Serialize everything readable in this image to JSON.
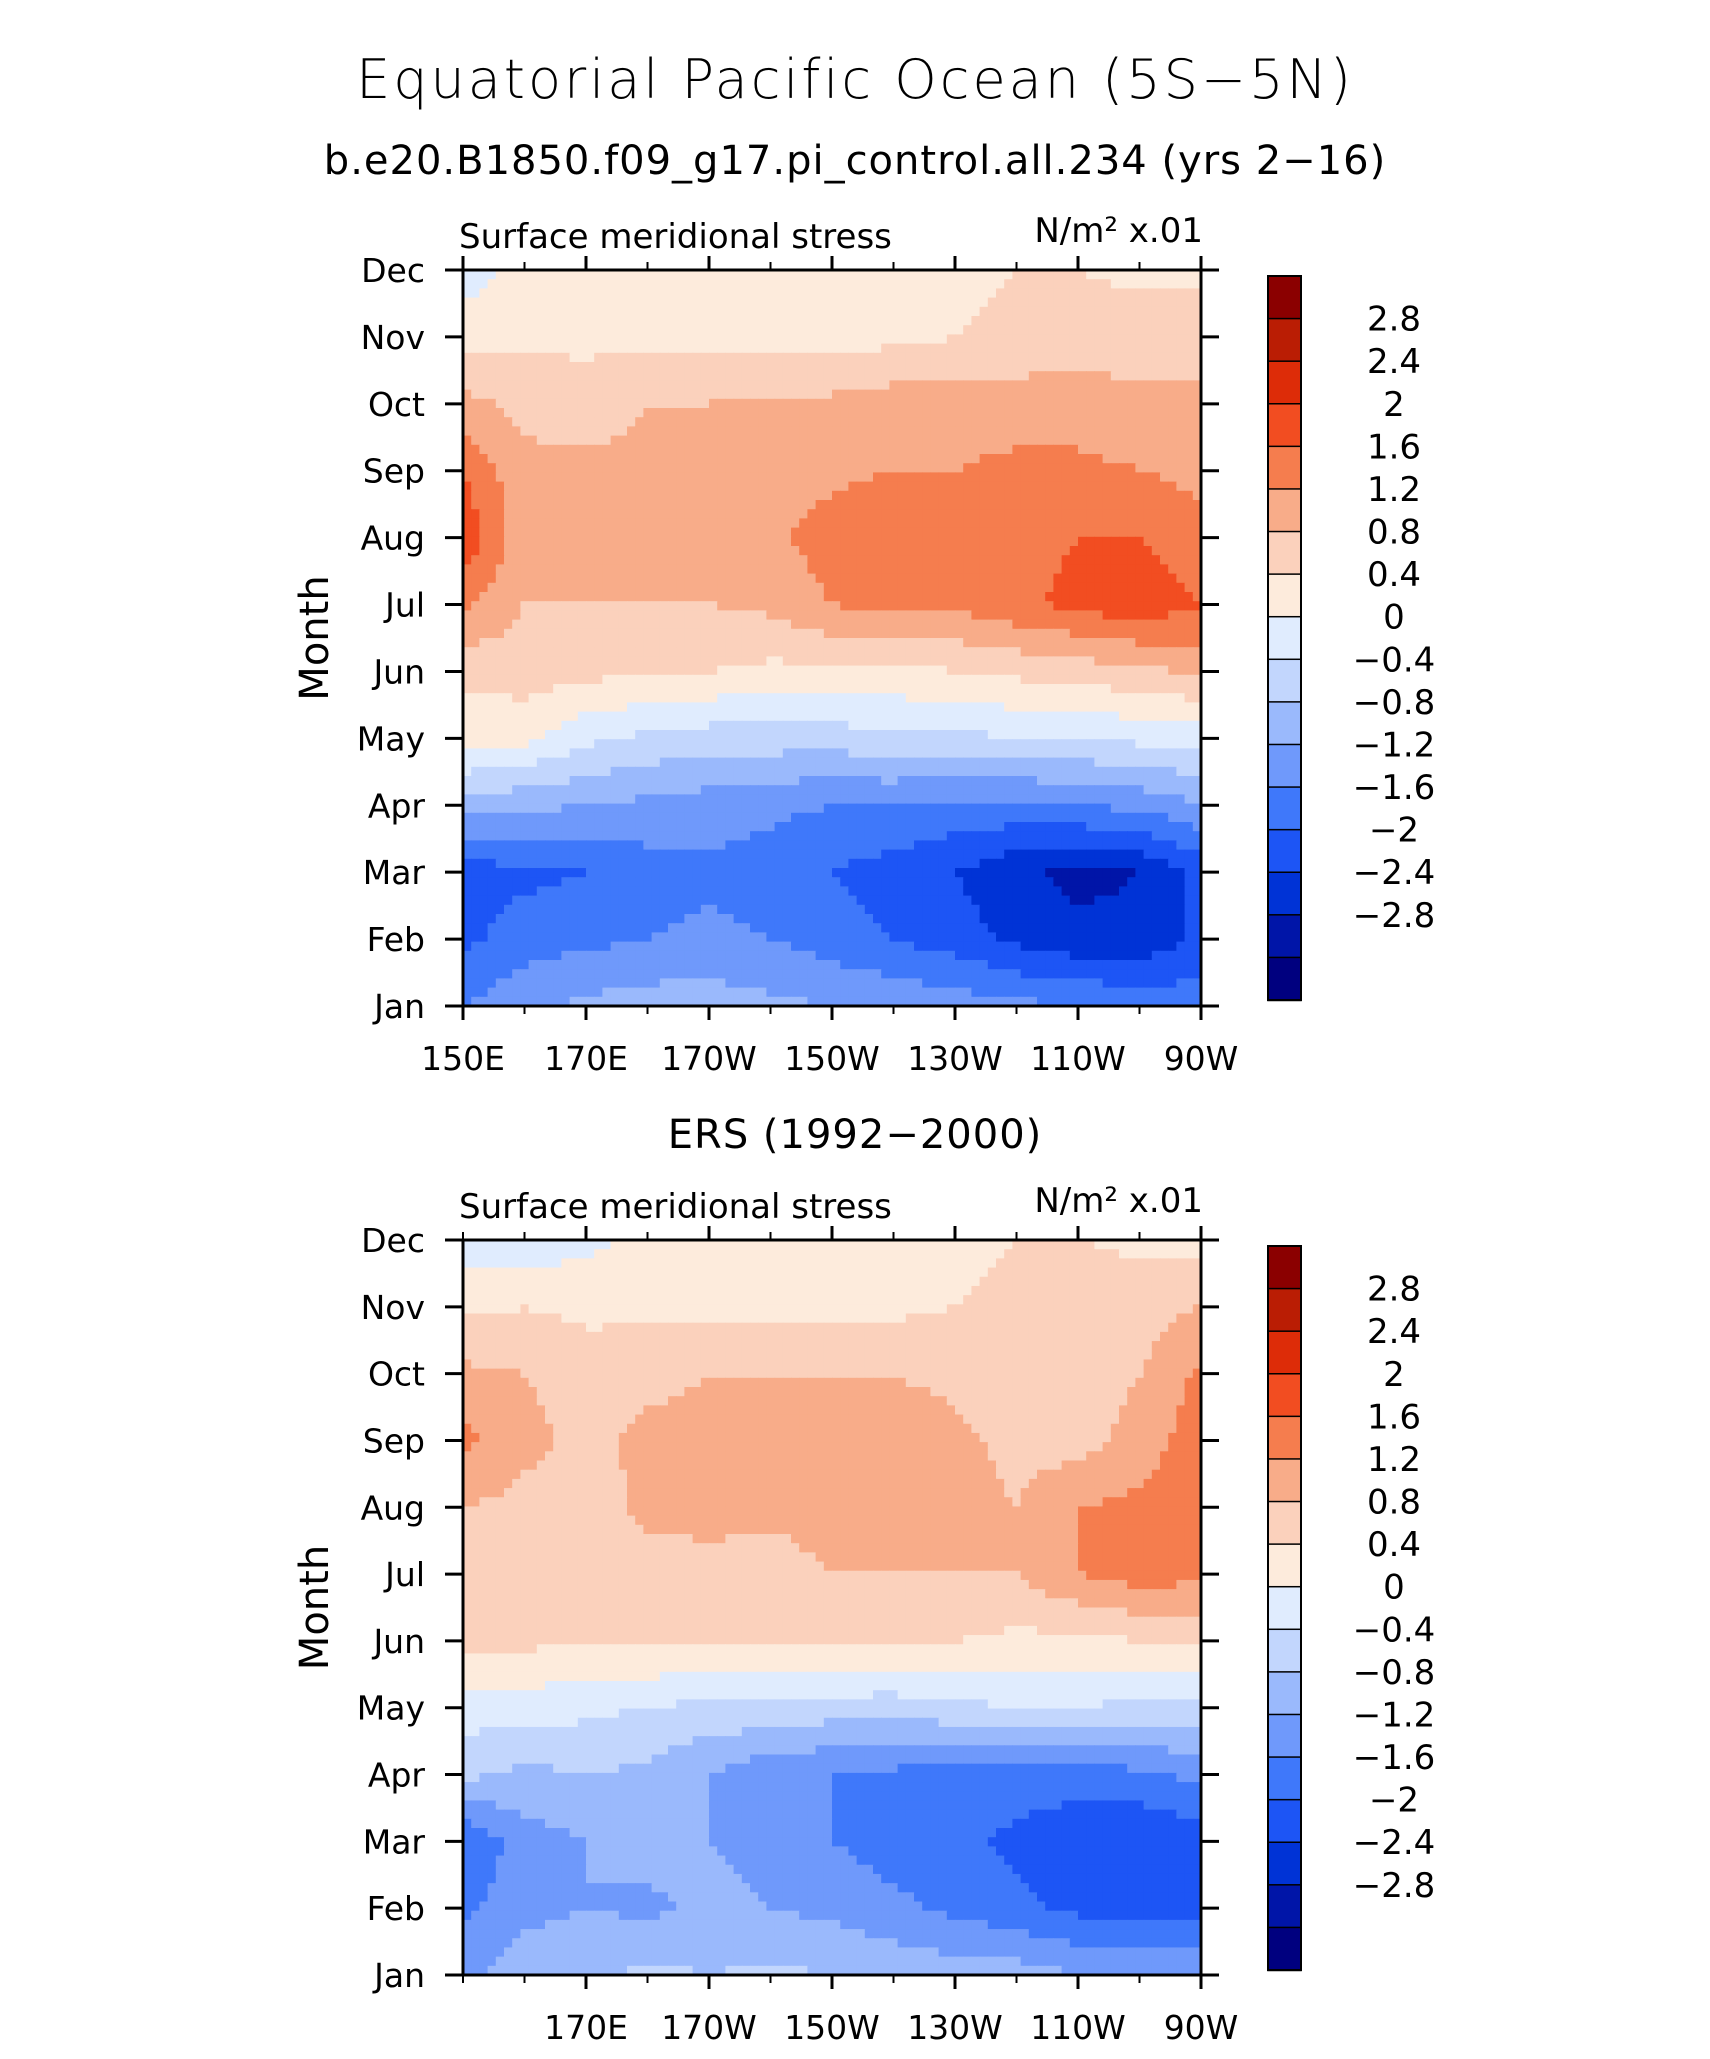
{
  "figure": {
    "title": "Equatorial Pacific Ocean (5S−5N)",
    "subtitle_top": "b.e20.B1850.f09_g17.pi_control.all.234 (yrs 2−16)",
    "subtitle_bottom": "ERS (1992−2000)"
  },
  "colors": {
    "palette": [
      "#00007f",
      "#0015a8",
      "#0033d6",
      "#1d55f5",
      "#3f78fa",
      "#6f99fb",
      "#9ab9fc",
      "#c2d6fd",
      "#e0ecfe",
      "#fdebdc",
      "#fbd1bc",
      "#f8ac89",
      "#f57d4e",
      "#f24d21",
      "#dd2c08",
      "#ba1d04",
      "#8b0000"
    ]
  },
  "chart_data": [
    {
      "type": "heatmap",
      "title": "b.e20.B1850.f09_g17.pi_control.all.234 (yrs 2−16)",
      "left_label": "Surface meridional stress",
      "right_label": "N/m² x.01",
      "ylabel": "Month",
      "xlabel": "",
      "y_ticks": [
        "Jan",
        "Feb",
        "Mar",
        "Apr",
        "May",
        "Jun",
        "Jul",
        "Aug",
        "Sep",
        "Oct",
        "Nov",
        "Dec"
      ],
      "x_ticks": [
        "150E",
        "170E",
        "170W",
        "150W",
        "130W",
        "110W",
        "90W"
      ],
      "x_tick_positions_lon": [
        150,
        170,
        190,
        210,
        230,
        250,
        270
      ],
      "xlim": [
        150,
        270
      ],
      "levels": [
        -2.8,
        -2.4,
        -2,
        -1.6,
        -1.2,
        -0.8,
        -0.4,
        0,
        0.4,
        0.8,
        1.2,
        1.6,
        2,
        2.4,
        2.8
      ],
      "colorbar_labels": [
        "2.8",
        "2.4",
        "2",
        "1.6",
        "1.2",
        "0.8",
        "0.4",
        "0",
        "−0.4",
        "−0.8",
        "−1.2",
        "−1.6",
        "−2",
        "−2.4",
        "−2.8"
      ],
      "lon": [
        150,
        160,
        170,
        180,
        190,
        200,
        210,
        220,
        230,
        240,
        250,
        260,
        270
      ],
      "months": [
        "Jan",
        "Feb",
        "Mar",
        "Apr",
        "May",
        "Jun",
        "Jul",
        "Aug",
        "Sep",
        "Oct",
        "Nov",
        "Dec"
      ],
      "values": [
        [
          -1.6,
          -1.3,
          -1.1,
          -1.0,
          -1.0,
          -1.1,
          -1.2,
          -1.3,
          -1.4,
          -1.5,
          -1.6,
          -1.7,
          -1.8
        ],
        [
          -2.1,
          -1.8,
          -1.7,
          -1.6,
          -1.5,
          -1.6,
          -1.8,
          -2.0,
          -2.2,
          -2.5,
          -2.7,
          -2.7,
          -2.3
        ],
        [
          -2.2,
          -2.1,
          -2.0,
          -1.8,
          -1.7,
          -1.8,
          -2.0,
          -2.2,
          -2.4,
          -2.7,
          -2.9,
          -2.8,
          -2.3
        ],
        [
          -1.0,
          -1.1,
          -1.2,
          -1.3,
          -1.4,
          -1.5,
          -1.6,
          -1.6,
          -1.7,
          -1.7,
          -1.6,
          -1.5,
          -1.2
        ],
        [
          0.2,
          0.1,
          -0.3,
          -0.5,
          -0.6,
          -0.6,
          -0.6,
          -0.5,
          -0.5,
          -0.4,
          -0.4,
          -0.3,
          -0.3
        ],
        [
          0.5,
          0.6,
          0.5,
          0.5,
          0.4,
          0.3,
          0.3,
          0.3,
          0.4,
          0.5,
          0.6,
          0.7,
          0.9
        ],
        [
          1.3,
          0.8,
          0.8,
          0.8,
          0.8,
          0.9,
          1.2,
          1.3,
          1.3,
          1.5,
          1.7,
          1.9,
          1.6
        ],
        [
          1.9,
          0.9,
          1.0,
          1.0,
          1.0,
          1.1,
          1.4,
          1.5,
          1.4,
          1.5,
          1.6,
          1.6,
          1.3
        ],
        [
          1.6,
          0.9,
          0.9,
          0.9,
          1.0,
          1.0,
          1.1,
          1.2,
          1.2,
          1.3,
          1.3,
          1.2,
          1.1
        ],
        [
          0.9,
          0.7,
          0.6,
          0.8,
          0.8,
          0.9,
          0.9,
          1.0,
          1.0,
          1.0,
          1.0,
          0.9,
          0.9
        ],
        [
          0.3,
          0.3,
          0.3,
          0.3,
          0.3,
          0.2,
          0.2,
          0.3,
          0.4,
          0.5,
          0.6,
          0.6,
          0.6
        ],
        [
          -0.3,
          0.2,
          0.1,
          0.1,
          0.1,
          0.2,
          0.2,
          0.2,
          0.3,
          0.4,
          0.4,
          0.3,
          0.3
        ]
      ]
    },
    {
      "type": "heatmap",
      "title": "ERS (1992−2000)",
      "left_label": "Surface meridional stress",
      "right_label": "N/m² x.01",
      "ylabel": "Month",
      "xlabel": "",
      "y_ticks": [
        "Jan",
        "Feb",
        "Mar",
        "Apr",
        "May",
        "Jun",
        "Jul",
        "Aug",
        "Sep",
        "Oct",
        "Nov",
        "Dec"
      ],
      "x_ticks": [
        "170E",
        "170W",
        "150W",
        "130W",
        "110W",
        "90W"
      ],
      "x_tick_positions_lon": [
        170,
        190,
        210,
        230,
        250,
        270
      ],
      "xlim": [
        150,
        270
      ],
      "levels": [
        -2.8,
        -2.4,
        -2,
        -1.6,
        -1.2,
        -0.8,
        -0.4,
        0,
        0.4,
        0.8,
        1.2,
        1.6,
        2,
        2.4,
        2.8
      ],
      "colorbar_labels": [
        "2.8",
        "2.4",
        "2",
        "1.6",
        "1.2",
        "0.8",
        "0.4",
        "0",
        "−0.4",
        "−0.8",
        "−1.2",
        "−1.6",
        "−2",
        "−2.4",
        "−2.8"
      ],
      "lon": [
        150,
        160,
        170,
        180,
        190,
        200,
        210,
        220,
        230,
        240,
        250,
        260,
        270
      ],
      "months": [
        "Jan",
        "Feb",
        "Mar",
        "Apr",
        "May",
        "Jun",
        "Jul",
        "Aug",
        "Sep",
        "Oct",
        "Nov",
        "Dec"
      ],
      "values": [
        [
          -1.3,
          -1.0,
          -0.9,
          -0.7,
          -0.8,
          -0.7,
          -0.8,
          -0.9,
          -1.0,
          -1.0,
          -1.2,
          -1.2,
          -1.3
        ],
        [
          -1.7,
          -1.3,
          -1.2,
          -1.3,
          -1.1,
          -1.2,
          -1.3,
          -1.5,
          -1.7,
          -1.9,
          -2.1,
          -2.2,
          -2.1
        ],
        [
          -2.0,
          -1.4,
          -1.2,
          -1.0,
          -1.2,
          -1.3,
          -1.6,
          -1.8,
          -1.9,
          -2.1,
          -2.3,
          -2.4,
          -2.2
        ],
        [
          -0.7,
          -0.9,
          -0.8,
          -0.9,
          -1.2,
          -1.5,
          -1.6,
          -1.7,
          -1.8,
          -1.8,
          -1.8,
          -1.7,
          -1.5
        ],
        [
          -0.2,
          -0.2,
          -0.3,
          -0.4,
          -0.5,
          -0.5,
          -0.6,
          -0.6,
          -0.5,
          -0.4,
          -0.4,
          -0.5,
          -0.5
        ],
        [
          0.5,
          0.5,
          0.4,
          0.5,
          0.4,
          0.5,
          0.5,
          0.4,
          0.4,
          0.3,
          0.3,
          0.4,
          0.5
        ],
        [
          0.8,
          0.7,
          0.6,
          0.6,
          0.6,
          0.6,
          0.8,
          0.8,
          0.8,
          0.8,
          1.2,
          1.4,
          1.3
        ],
        [
          0.8,
          0.7,
          0.6,
          0.9,
          1.0,
          0.9,
          1.0,
          1.0,
          0.9,
          0.8,
          1.2,
          1.3,
          1.4
        ],
        [
          1.3,
          0.9,
          0.7,
          0.9,
          0.9,
          1.0,
          1.0,
          1.0,
          0.9,
          0.7,
          0.6,
          1.0,
          1.4
        ],
        [
          0.9,
          0.8,
          0.6,
          0.7,
          0.8,
          0.8,
          0.8,
          0.8,
          0.7,
          0.5,
          0.5,
          0.8,
          1.3
        ],
        [
          0.3,
          0.4,
          0.3,
          0.3,
          0.3,
          0.3,
          0.3,
          0.3,
          0.4,
          0.5,
          0.7,
          0.6,
          0.8
        ],
        [
          -0.2,
          -0.3,
          -0.1,
          0.1,
          0.2,
          0.2,
          0.2,
          0.3,
          0.3,
          0.4,
          0.4,
          0.3,
          0.2
        ]
      ]
    }
  ]
}
